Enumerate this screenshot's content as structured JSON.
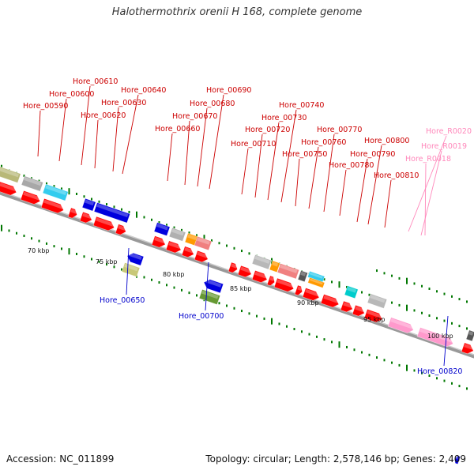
{
  "title": "Halothermothrix orenii H 168, complete genome",
  "footer": {
    "accession": "Accession: NC_011899",
    "summary": "Topology: circular; Length: 2,578,146 bp; Genes: 2,409"
  },
  "colors": {
    "forward_label": "#cc0000",
    "reverse_label": "#0000cc",
    "rna_label": "#ff88bb",
    "tick": "#007700",
    "backbone": "#999999",
    "cds": "#ff0000",
    "rna": "#ff99cc"
  },
  "kbp_labels": [
    "70 kbp",
    "75 kbp",
    "80 kbp",
    "85 kbp",
    "90 kbp",
    "95 kbp",
    "100 kbp"
  ],
  "genes_upper": [
    "Hore_00590",
    "Hore_00600",
    "Hore_00610",
    "Hore_00620",
    "Hore_00630",
    "Hore_00640",
    "Hore_00660",
    "Hore_00670",
    "Hore_00680",
    "Hore_00690",
    "Hore_00710",
    "Hore_00720",
    "Hore_00730",
    "Hore_00740",
    "Hore_00750",
    "Hore_00760",
    "Hore_00770",
    "Hore_00780",
    "Hore_00790",
    "Hore_00800",
    "Hore_00810"
  ],
  "rna_genes": [
    "Hore_R0020",
    "Hore_R0019",
    "Hore_R0018"
  ],
  "genes_lower": [
    "Hore_00650",
    "Hore_00700",
    "Hore_00820"
  ]
}
